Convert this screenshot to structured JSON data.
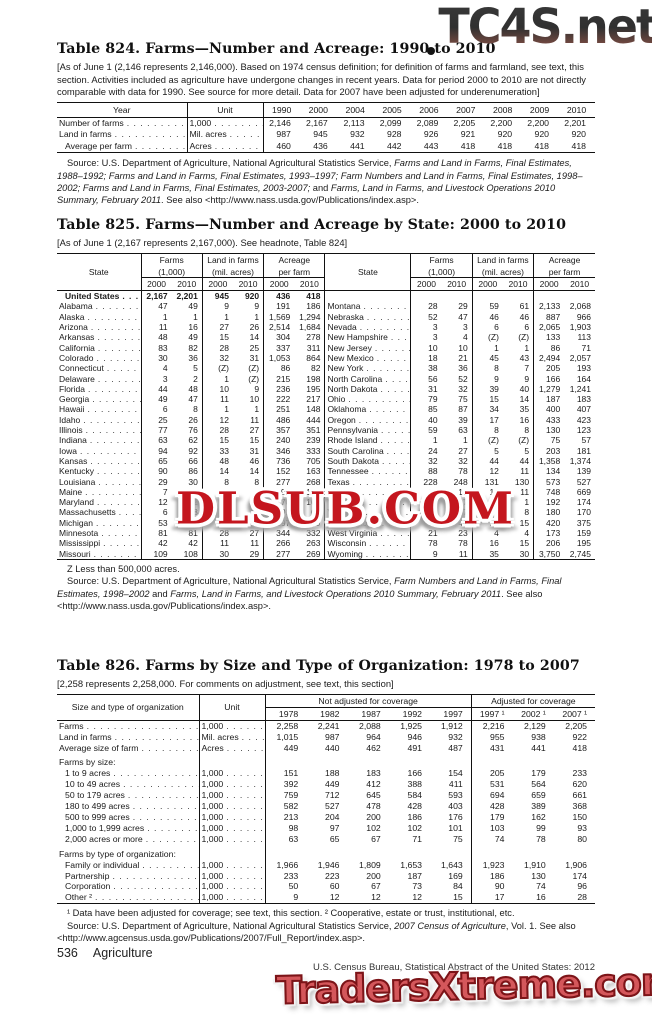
{
  "watermarks": {
    "top": "TC4S.net",
    "middle": "DLSUB.COM",
    "bottom": "TradersXtreme.com"
  },
  "footer": {
    "page_number": "536",
    "section": "Agriculture",
    "right_text": "U.S. Census Bureau, Statistical Abstract of the United States: 2012"
  },
  "table824": {
    "title": "Table 824. Farms—Number and Acreage: 1990 to 2010",
    "headnote": "[As of June 1 (2,146 represents 2,146,000). Based on 1974 census definition; for definition of farms and farmland, see text, this section. Activities included as agriculture have undergone changes in recent years. Data for period 2000 to 2010 are not directly comparable with data for 1990. See source for more detail. Data for 2007 have been adjusted for underenumeration]",
    "col_year": "Year",
    "col_unit": "Unit",
    "years": [
      "1990",
      "2000",
      "2004",
      "2005",
      "2006",
      "2007",
      "2008",
      "2009",
      "2010"
    ],
    "rows": [
      {
        "label": "Number of farms",
        "unit": "1,000",
        "v": [
          "2,146",
          "2,167",
          "2,113",
          "2,099",
          "2,089",
          "2,205",
          "2,200",
          "2,200",
          "2,201"
        ]
      },
      {
        "label": "Land in farms",
        "unit": "Mil. acres",
        "v": [
          "987",
          "945",
          "932",
          "928",
          "926",
          "921",
          "920",
          "920",
          "920"
        ]
      },
      {
        "label": "Average per farm",
        "unit": "Acres",
        "indent": true,
        "v": [
          "460",
          "436",
          "441",
          "442",
          "443",
          "418",
          "418",
          "418",
          "418"
        ]
      }
    ],
    "source": [
      {
        "t": "Source: U.S. Department of Agriculture, National Agricultural Statistics Service, "
      },
      {
        "t": "Farms and Land in Farms, Final Estimates, 1988–1992; Farms and Land in Farms, Final Estimates, 1993–1997; Farm Numbers and Land in Farms, Final Estimates, 1998–2002; Farms and Land in Farms, Final Estimates, 2003-2007; ",
        "i": true
      },
      {
        "t": "and "
      },
      {
        "t": "Farms, Land in Farms, and Livestock Operations 2010 Summary, February 2011",
        "i": true
      },
      {
        "t": ". See also <http://www.nass.usda.gov/Publications/index.asp>."
      }
    ]
  },
  "table825": {
    "title": "Table 825. Farms—Number and Acreage by State: 2000 to 2010",
    "headnote": "[As of June 1 (2,167 represents 2,167,000). See headnote, Table 824]",
    "state_header": "State",
    "groups": [
      {
        "l1": "Farms",
        "l2": "(1,000)"
      },
      {
        "l1": "Land in farms",
        "l2": "(mil. acres)"
      },
      {
        "l1": "Acreage",
        "l2": "per farm"
      }
    ],
    "year_cols": [
      "2000",
      "2010"
    ],
    "rows_left": [
      {
        "state": "United States",
        "bold": true,
        "v": [
          "2,167",
          "2,201",
          "945",
          "920",
          "436",
          "418"
        ]
      },
      {
        "state": "Alabama",
        "v": [
          "47",
          "49",
          "9",
          "9",
          "191",
          "186"
        ]
      },
      {
        "state": "Alaska",
        "v": [
          "1",
          "1",
          "1",
          "1",
          "1,569",
          "1,294"
        ]
      },
      {
        "state": "Arizona",
        "v": [
          "11",
          "16",
          "27",
          "26",
          "2,514",
          "1,684"
        ]
      },
      {
        "state": "Arkansas",
        "v": [
          "48",
          "49",
          "15",
          "14",
          "304",
          "278"
        ]
      },
      {
        "state": "California",
        "v": [
          "83",
          "82",
          "28",
          "25",
          "337",
          "311"
        ]
      },
      {
        "state": "Colorado",
        "v": [
          "30",
          "36",
          "32",
          "31",
          "1,053",
          "864"
        ]
      },
      {
        "state": "Connecticut",
        "v": [
          "4",
          "5",
          "(Z)",
          "(Z)",
          "86",
          "82"
        ]
      },
      {
        "state": "Delaware",
        "v": [
          "3",
          "2",
          "1",
          "(Z)",
          "215",
          "198"
        ]
      },
      {
        "state": "Florida",
        "v": [
          "44",
          "48",
          "10",
          "9",
          "236",
          "195"
        ]
      },
      {
        "state": "Georgia",
        "v": [
          "49",
          "47",
          "11",
          "10",
          "222",
          "217"
        ]
      },
      {
        "state": "Hawaii",
        "v": [
          "6",
          "8",
          "1",
          "1",
          "251",
          "148"
        ]
      },
      {
        "state": "Idaho",
        "v": [
          "25",
          "26",
          "12",
          "11",
          "486",
          "444"
        ]
      },
      {
        "state": "Illinois",
        "v": [
          "77",
          "76",
          "28",
          "27",
          "357",
          "351"
        ]
      },
      {
        "state": "Indiana",
        "v": [
          "63",
          "62",
          "15",
          "15",
          "240",
          "239"
        ]
      },
      {
        "state": "Iowa",
        "v": [
          "94",
          "92",
          "33",
          "31",
          "346",
          "333"
        ]
      },
      {
        "state": "Kansas",
        "v": [
          "65",
          "66",
          "48",
          "46",
          "736",
          "705"
        ]
      },
      {
        "state": "Kentucky",
        "v": [
          "90",
          "86",
          "14",
          "14",
          "152",
          "163"
        ]
      },
      {
        "state": "Louisiana",
        "v": [
          "29",
          "30",
          "8",
          "8",
          "277",
          "268"
        ]
      },
      {
        "state": "Maine",
        "v": [
          "7",
          "8",
          "1",
          "1",
          "190",
          "167"
        ]
      },
      {
        "state": "Maryland",
        "v": [
          "12",
          "12",
          "2",
          "2",
          "170",
          "163"
        ]
      },
      {
        "state": "Massachusetts",
        "v": [
          "6",
          "8",
          "1",
          "1",
          "91",
          "67"
        ]
      },
      {
        "state": "Michigan",
        "v": [
          "53",
          "56",
          "10",
          "10",
          "197",
          "179"
        ]
      },
      {
        "state": "Minnesota",
        "v": [
          "81",
          "81",
          "28",
          "27",
          "344",
          "332"
        ]
      },
      {
        "state": "Mississippi",
        "v": [
          "42",
          "42",
          "11",
          "11",
          "266",
          "263"
        ]
      },
      {
        "state": "Missouri",
        "v": [
          "109",
          "108",
          "30",
          "29",
          "277",
          "269"
        ]
      }
    ],
    "rows_right": [
      {
        "state": "",
        "v": [
          "",
          "",
          "",
          "",
          "",
          ""
        ]
      },
      {
        "state": "Montana",
        "v": [
          "28",
          "29",
          "59",
          "61",
          "2,133",
          "2,068"
        ]
      },
      {
        "state": "Nebraska",
        "v": [
          "52",
          "47",
          "46",
          "46",
          "887",
          "966"
        ]
      },
      {
        "state": "Nevada",
        "v": [
          "3",
          "3",
          "6",
          "6",
          "2,065",
          "1,903"
        ]
      },
      {
        "state": "New Hampshire",
        "v": [
          "3",
          "4",
          "(Z)",
          "(Z)",
          "133",
          "113"
        ]
      },
      {
        "state": "New Jersey",
        "v": [
          "10",
          "10",
          "1",
          "1",
          "86",
          "71"
        ]
      },
      {
        "state": "New Mexico",
        "v": [
          "18",
          "21",
          "45",
          "43",
          "2,494",
          "2,057"
        ]
      },
      {
        "state": "New York",
        "v": [
          "38",
          "36",
          "8",
          "7",
          "205",
          "193"
        ]
      },
      {
        "state": "North Carolina",
        "v": [
          "56",
          "52",
          "9",
          "9",
          "166",
          "164"
        ]
      },
      {
        "state": "North Dakota",
        "v": [
          "31",
          "32",
          "39",
          "40",
          "1,279",
          "1,241"
        ]
      },
      {
        "state": "Ohio",
        "v": [
          "79",
          "75",
          "15",
          "14",
          "187",
          "183"
        ]
      },
      {
        "state": "Oklahoma",
        "v": [
          "85",
          "87",
          "34",
          "35",
          "400",
          "407"
        ]
      },
      {
        "state": "Oregon",
        "v": [
          "40",
          "39",
          "17",
          "16",
          "433",
          "423"
        ]
      },
      {
        "state": "Pennsylvania",
        "v": [
          "59",
          "63",
          "8",
          "8",
          "130",
          "123"
        ]
      },
      {
        "state": "Rhode Island",
        "v": [
          "1",
          "1",
          "(Z)",
          "(Z)",
          "75",
          "57"
        ]
      },
      {
        "state": "South Carolina",
        "v": [
          "24",
          "27",
          "5",
          "5",
          "203",
          "181"
        ]
      },
      {
        "state": "South Dakota",
        "v": [
          "32",
          "32",
          "44",
          "44",
          "1,358",
          "1,374"
        ]
      },
      {
        "state": "Tennessee",
        "v": [
          "88",
          "78",
          "12",
          "11",
          "134",
          "139"
        ]
      },
      {
        "state": "Texas",
        "v": [
          "228",
          "248",
          "131",
          "130",
          "573",
          "527"
        ]
      },
      {
        "state": "Utah",
        "v": [
          "16",
          "17",
          "12",
          "11",
          "748",
          "669"
        ]
      },
      {
        "state": "Vermont",
        "v": [
          "7",
          "7",
          "1",
          "1",
          "192",
          "174"
        ]
      },
      {
        "state": "Virginia",
        "v": [
          "48",
          "47",
          "9",
          "8",
          "180",
          "170"
        ]
      },
      {
        "state": "Washington",
        "v": [
          "39",
          "40",
          "16",
          "15",
          "420",
          "375"
        ]
      },
      {
        "state": "West Virginia",
        "v": [
          "21",
          "23",
          "4",
          "4",
          "173",
          "159"
        ]
      },
      {
        "state": "Wisconsin",
        "v": [
          "78",
          "78",
          "16",
          "15",
          "206",
          "195"
        ]
      },
      {
        "state": "Wyoming",
        "v": [
          "9",
          "11",
          "35",
          "30",
          "3,750",
          "2,745"
        ]
      }
    ],
    "z_note": "Z Less than 500,000 acres.",
    "source": [
      {
        "t": "Source: U.S. Department of Agriculture, National Agricultural Statistics Service, "
      },
      {
        "t": "Farm Numbers and Land in Farms, Final Estimates, 1998–2002",
        "i": true
      },
      {
        "t": " and "
      },
      {
        "t": "Farms, Land in Farms, and Livestock Operations 2010 Summary, February 2011",
        "i": true
      },
      {
        "t": ". See also <http://www.nass.usda.gov/Publications/index.asp>."
      }
    ]
  },
  "table826": {
    "title": "Table 826. Farms by Size and Type of Organization: 1978 to 2007",
    "headnote": "[2,258 represents 2,258,000. For comments on adjustment, see text, this section]",
    "col1": "Size and type of organization",
    "col2": "Unit",
    "group1": "Not adjusted for coverage",
    "group2": "Adjusted for coverage",
    "years": [
      "1978",
      "1982",
      "1987",
      "1992",
      "1997",
      "1997 ¹",
      "2002 ¹",
      "2007 ¹"
    ],
    "rows": [
      {
        "label": "Farms",
        "unit": "1,000",
        "v": [
          "2,258",
          "2,241",
          "2,088",
          "1,925",
          "1,912",
          "2,216",
          "2,129",
          "2,205"
        ]
      },
      {
        "label": "Land in farms",
        "unit": "Mil. acres",
        "v": [
          "1,015",
          "987",
          "964",
          "946",
          "932",
          "955",
          "938",
          "922"
        ]
      },
      {
        "label": "Average size of farm",
        "unit": "Acres",
        "v": [
          "449",
          "440",
          "462",
          "491",
          "487",
          "431",
          "441",
          "418"
        ]
      },
      {
        "label": "Farms by size:",
        "header": true
      },
      {
        "label": "1 to 9 acres",
        "unit": "1,000",
        "indent": true,
        "v": [
          "151",
          "188",
          "183",
          "166",
          "154",
          "205",
          "179",
          "233"
        ]
      },
      {
        "label": "10 to 49 acres",
        "unit": "1,000",
        "indent": true,
        "v": [
          "392",
          "449",
          "412",
          "388",
          "411",
          "531",
          "564",
          "620"
        ]
      },
      {
        "label": "50 to 179 acres",
        "unit": "1,000",
        "indent": true,
        "v": [
          "759",
          "712",
          "645",
          "584",
          "593",
          "694",
          "659",
          "661"
        ]
      },
      {
        "label": "180 to 499 acres",
        "unit": "1,000",
        "indent": true,
        "v": [
          "582",
          "527",
          "478",
          "428",
          "403",
          "428",
          "389",
          "368"
        ]
      },
      {
        "label": "500 to 999 acres",
        "unit": "1,000",
        "indent": true,
        "v": [
          "213",
          "204",
          "200",
          "186",
          "176",
          "179",
          "162",
          "150"
        ]
      },
      {
        "label": "1,000 to 1,999 acres",
        "unit": "1,000",
        "indent": true,
        "v": [
          "98",
          "97",
          "102",
          "102",
          "101",
          "103",
          "99",
          "93"
        ]
      },
      {
        "label": "2,000 acres or more",
        "unit": "1,000",
        "indent": true,
        "v": [
          "63",
          "65",
          "67",
          "71",
          "75",
          "74",
          "78",
          "80"
        ]
      },
      {
        "label": "Farms by type of organization:",
        "header": true
      },
      {
        "label": "Family or individual",
        "unit": "1,000",
        "indent": true,
        "v": [
          "1,966",
          "1,946",
          "1,809",
          "1,653",
          "1,643",
          "1,923",
          "1,910",
          "1,906"
        ]
      },
      {
        "label": "Partnership",
        "unit": "1,000",
        "indent": true,
        "v": [
          "233",
          "223",
          "200",
          "187",
          "169",
          "186",
          "130",
          "174"
        ]
      },
      {
        "label": "Corporation",
        "unit": "1,000",
        "indent": true,
        "v": [
          "50",
          "60",
          "67",
          "73",
          "84",
          "90",
          "74",
          "96"
        ]
      },
      {
        "label": "Other ²",
        "unit": "1,000",
        "indent": true,
        "v": [
          "9",
          "12",
          "12",
          "12",
          "15",
          "17",
          "16",
          "28"
        ]
      }
    ],
    "footnote": "¹ Data have been adjusted for coverage; see text, this section. ² Cooperative, estate or trust, institutional, etc.",
    "source": [
      {
        "t": "Source: U.S. Department of Agriculture, National Agricultural Statistics Service, "
      },
      {
        "t": "2007 Census of Agriculture",
        "i": true
      },
      {
        "t": ", Vol. 1. See also <http://www.agcensus.usda.gov/Publications/2007/Full_Report/index.asp>."
      }
    ]
  }
}
